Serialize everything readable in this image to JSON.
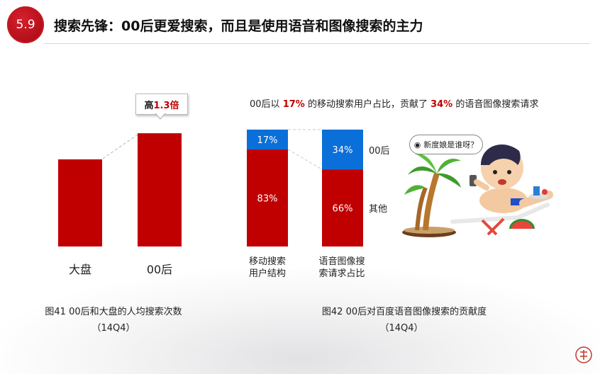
{
  "header": {
    "section_number": "5.9",
    "title": "搜索先锋：00后更爱搜索，而且是使用语音和图像搜索的主力"
  },
  "figure41": {
    "callout_prefix": "高",
    "callout_value": "1.3倍",
    "caption": "图41 00后和大盘的人均搜索次数",
    "period": "（14Q4）"
  },
  "figure42": {
    "headline_part1": "00后以 ",
    "headline_value1": "17%",
    "headline_part2": " 的移动搜索用户占比，贡献了 ",
    "headline_value2": "34%",
    "headline_part3": " 的语音图像搜索请求",
    "bar1_label_line1": "移动搜索",
    "bar1_label_line2": "用户结构",
    "bar2_label_line1": "语音图像搜",
    "bar2_label_line2": "索请求占比",
    "caption": "图42 00后对百度语音图像搜索的贡献度",
    "period": "（14Q4）"
  },
  "illustration": {
    "speech_bubble": "新度娘是谁呀？",
    "wifi_icon": "signal-icon"
  },
  "colors": {
    "red": "#c00000",
    "blue": "#0a6fd8",
    "badge": "#c41a24"
  },
  "chart_data": [
    {
      "type": "bar",
      "categories": [
        "大盘",
        "00后"
      ],
      "values": [
        1.0,
        1.3
      ],
      "ylim": [
        0,
        1.4
      ],
      "annotation": "高1.3倍"
    },
    {
      "type": "bar",
      "stacked": true,
      "percent": true,
      "categories": [
        "移动搜索用户结构",
        "语音图像搜索请求占比"
      ],
      "series": [
        {
          "name": "00后",
          "values": [
            17,
            34
          ],
          "color": "#0a6fd8"
        },
        {
          "name": "其他",
          "values": [
            83,
            66
          ],
          "color": "#c00000"
        }
      ],
      "ylim": [
        0,
        100
      ],
      "legend_placement": "right"
    }
  ]
}
